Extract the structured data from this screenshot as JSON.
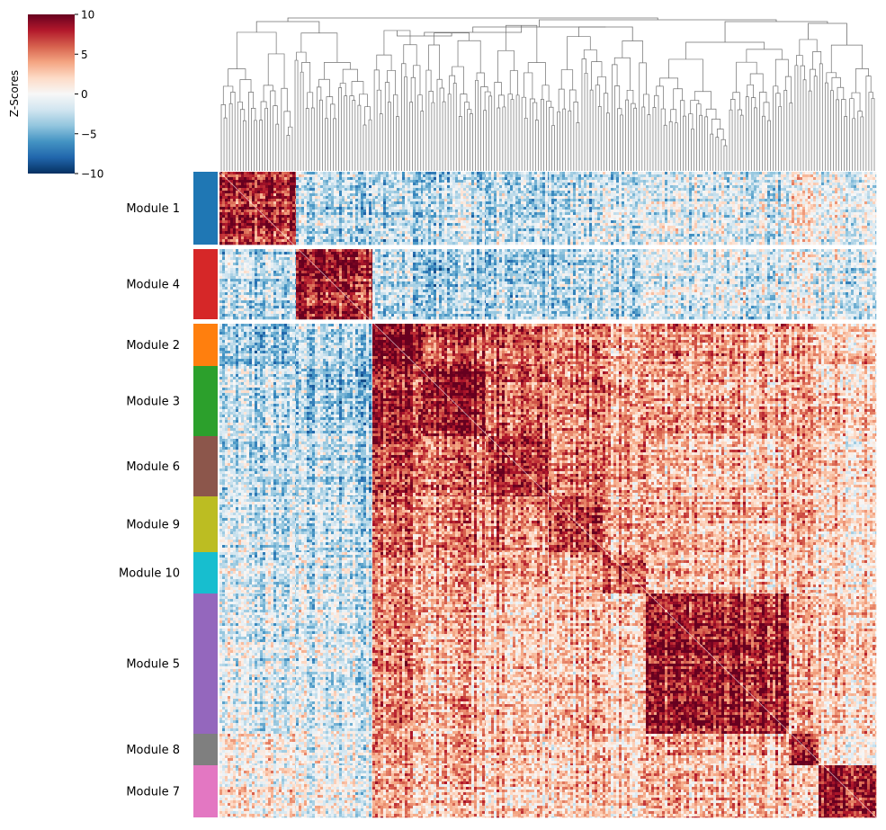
{
  "chart_data": {
    "type": "heatmap",
    "title": "",
    "colorbar": {
      "label": "Z-Scores",
      "vmin": -10,
      "vmax": 10,
      "ticks": [
        "10",
        "5",
        "0",
        "−5",
        "−10"
      ],
      "tick_values": [
        10,
        5,
        0,
        -5,
        -10
      ],
      "colormap": "RdBu_r",
      "stops": [
        "#053061",
        "#2166ac",
        "#4393c3",
        "#92c5de",
        "#d1e5f0",
        "#f7f7f7",
        "#fddbc7",
        "#f4a582",
        "#d6604d",
        "#b2182b",
        "#67001f"
      ]
    },
    "dendrogram": {
      "position": "top",
      "color": "#707070"
    },
    "grid": false,
    "modules": [
      {
        "label": "Module 1",
        "color": "#1f77b4",
        "size": 83
      },
      {
        "label": "Module 4",
        "color": "#d62728",
        "size": 78
      },
      {
        "label": "Module 2",
        "color": "#ff7f0e",
        "size": 46
      },
      {
        "label": "Module 3",
        "color": "#2ca02c",
        "size": 78
      },
      {
        "label": "Module 6",
        "color": "#8c564b",
        "size": 67
      },
      {
        "label": "Module 9",
        "color": "#bcbd22",
        "size": 62
      },
      {
        "label": "Module 10",
        "color": "#17becf",
        "size": 45
      },
      {
        "label": "Module 5",
        "color": "#9467bd",
        "size": 157
      },
      {
        "label": "Module 8",
        "color": "#7f7f7f",
        "size": 34
      },
      {
        "label": "Module 7",
        "color": "#e377c2",
        "size": 51
      }
    ],
    "block_order_columns": [
      "Module 1",
      "Module 4",
      "Module 2",
      "Module 3",
      "Module 6",
      "Module 9",
      "Module 10",
      "Module 5",
      "Module 8",
      "Module 7"
    ],
    "mean_z_between_modules": {
      "rows": [
        "Module 1",
        "Module 4",
        "Module 2",
        "Module 3",
        "Module 6",
        "Module 9",
        "Module 10",
        "Module 5",
        "Module 8",
        "Module 7"
      ],
      "values": [
        [
          7.5,
          -3,
          -3.5,
          -2.5,
          -2.5,
          -2,
          -1.5,
          -1.5,
          0.5,
          0.5
        ],
        [
          -3,
          8,
          -3,
          -3.5,
          -3,
          -2.5,
          -2,
          -1.5,
          -1,
          -1
        ],
        [
          -3.5,
          -3,
          9,
          7,
          6,
          5,
          4,
          4,
          3.5,
          3
        ],
        [
          -2.5,
          -3.5,
          7,
          9,
          6,
          5,
          4,
          3.5,
          3,
          3
        ],
        [
          -2.5,
          -3,
          6,
          6,
          8,
          5,
          4,
          3,
          2.5,
          2.5
        ],
        [
          -2,
          -2.5,
          5,
          5,
          5,
          7,
          3.5,
          3,
          2.5,
          2.5
        ],
        [
          -1.5,
          -2,
          4,
          4,
          4,
          3.5,
          6,
          2.5,
          2,
          2
        ],
        [
          -1.5,
          -1.5,
          4,
          3.5,
          3,
          3,
          2.5,
          8,
          3,
          3
        ],
        [
          0.5,
          -1,
          3.5,
          3,
          2.5,
          2.5,
          2,
          3,
          8,
          2
        ],
        [
          0.5,
          -1,
          3,
          3,
          2.5,
          2.5,
          2,
          3,
          2,
          9
        ]
      ]
    }
  }
}
